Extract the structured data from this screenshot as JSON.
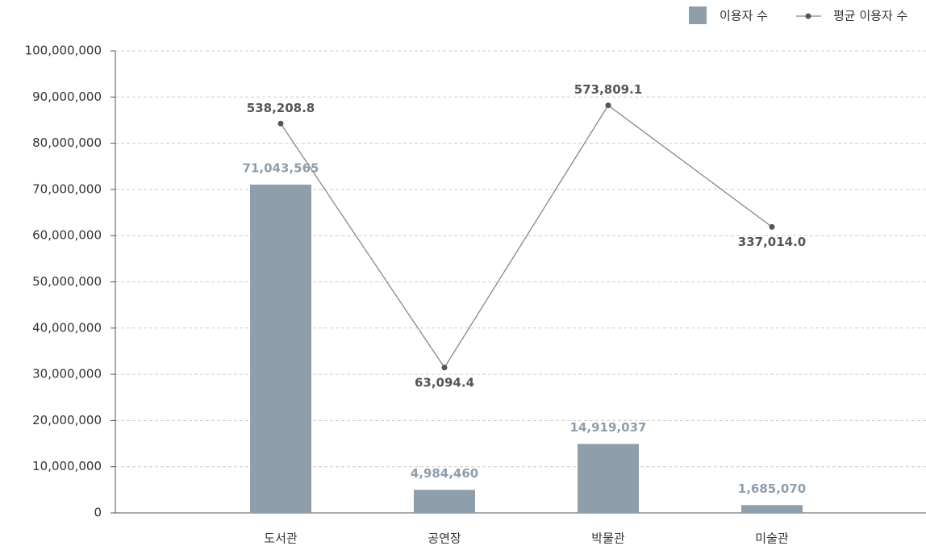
{
  "chart_data": {
    "type": "bar_line",
    "categories": [
      "도서관",
      "공연장",
      "박물관",
      "미술관"
    ],
    "series": [
      {
        "name": "이용자 수",
        "color": "#8e9eab",
        "values": [
          71043565,
          4984460,
          14919037,
          1685070
        ],
        "value_labels": [
          "71,043,565",
          "4,984,460",
          "14,919,037",
          "1,685,070"
        ]
      },
      {
        "name": "평균 이용자 수",
        "color": "#888888",
        "axis": "y2",
        "values": [
          538208.8,
          63094.4,
          573809.1,
          337014.0
        ],
        "value_labels": [
          "538,208.8",
          "63,094.4",
          "573,809.1",
          "337,014.0"
        ]
      }
    ],
    "ylim": [
      0,
      100000000
    ],
    "yticks": [
      0,
      {
        "value": 10000000,
        "label": "10,000,000"
      },
      {
        "value": 20000000,
        "label": "20,000,000"
      },
      {
        "value": 30000000,
        "label": "30,000,000"
      },
      {
        "value": 40000000,
        "label": "40,000,000"
      },
      {
        "value": 50000000,
        "label": "50,000,000"
      },
      {
        "value": 60000000,
        "label": "60,000,000"
      },
      {
        "value": 70000000,
        "label": "70,000,000"
      },
      {
        "value": 80000000,
        "label": "80,000,000"
      },
      {
        "value": 90000000,
        "label": "90,000,000"
      },
      {
        "value": 100000000,
        "label": "100,000,000"
      }
    ],
    "y2lim": [
      -220000,
      680000
    ],
    "grid": true,
    "legend": "top-right"
  }
}
